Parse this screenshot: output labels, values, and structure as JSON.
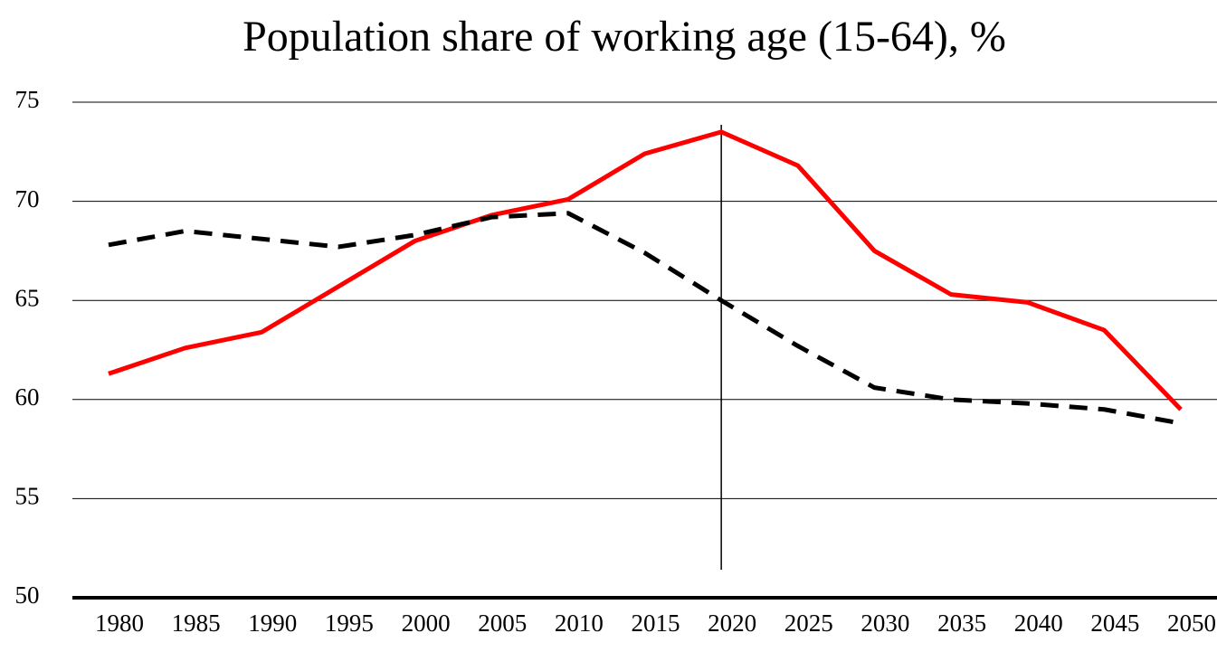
{
  "chart_data": {
    "type": "line",
    "title": "Population share of working age (15-64), %",
    "categories": [
      "1980",
      "1985",
      "1990",
      "1995",
      "2000",
      "2005",
      "2010",
      "2015",
      "2020",
      "2025",
      "2030",
      "2035",
      "2040",
      "2045",
      "2050"
    ],
    "series": [
      {
        "color": "#ff0000",
        "dash": false,
        "values": [
          61.3,
          62.6,
          63.4,
          65.7,
          68.0,
          69.3,
          70.1,
          72.4,
          73.5,
          71.8,
          67.5,
          65.3,
          64.9,
          63.5,
          59.5
        ]
      },
      {
        "color": "#000000",
        "dash": true,
        "values": [
          67.8,
          68.5,
          68.1,
          67.7,
          68.3,
          69.2,
          69.4,
          67.4,
          65.0,
          62.7,
          60.6,
          60.0,
          59.8,
          59.5,
          58.8
        ]
      }
    ],
    "ylim": [
      50,
      75
    ],
    "yticks": [
      50,
      55,
      60,
      65,
      70,
      75
    ],
    "grid": true,
    "vertical_line_at": "2020"
  }
}
